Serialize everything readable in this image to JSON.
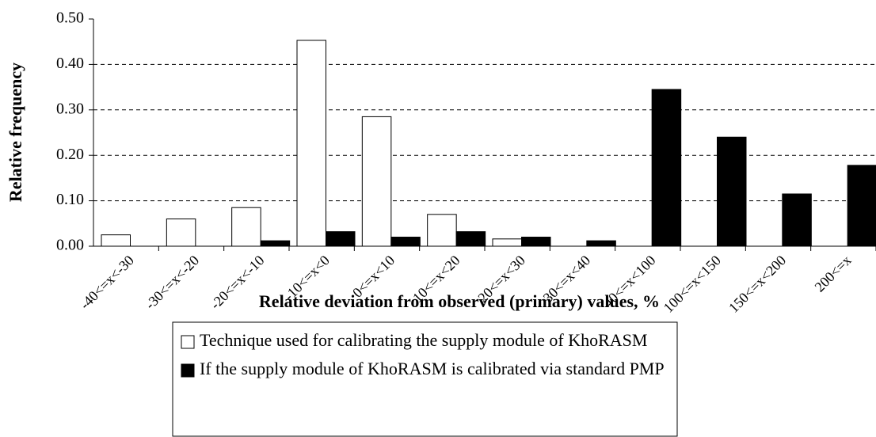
{
  "chart_data": {
    "type": "bar",
    "y_label": "Relative frequency",
    "x_label": "Relative deviation from observed (primary) values, %",
    "categories": [
      "-40<=x<-30",
      "-30<=x<-20",
      "-20<=x<-10",
      "-10<=x<0",
      "0<=x<10",
      "10<=x<20",
      "20<=x<30",
      "30<=x<40",
      "40<=x<100",
      "100<=x<150",
      "150<=x<200",
      "200<=x"
    ],
    "series": [
      {
        "name": "Technique used for calibrating the supply module of KhoRASM",
        "color": "#ffffff",
        "values": [
          0.025,
          0.06,
          0.085,
          0.453,
          0.285,
          0.07,
          0.016,
          0,
          0,
          0,
          0,
          0
        ]
      },
      {
        "name": "If the supply module of KhoRASM is calibrated via standard PMP",
        "color": "#000000",
        "values": [
          0,
          0,
          0.012,
          0.032,
          0.02,
          0.032,
          0.02,
          0.012,
          0.345,
          0.24,
          0.115,
          0.178
        ]
      }
    ],
    "ylim": [
      0,
      0.5
    ],
    "yticks": [
      {
        "value": 0,
        "label": "0.00"
      },
      {
        "value": 0.1,
        "label": "0.10"
      },
      {
        "value": 0.2,
        "label": "0.20"
      },
      {
        "value": 0.3,
        "label": "0.30"
      },
      {
        "value": 0.4,
        "label": "0.40"
      },
      {
        "value": 0.5,
        "label": "0.50"
      }
    ],
    "grid": true
  }
}
